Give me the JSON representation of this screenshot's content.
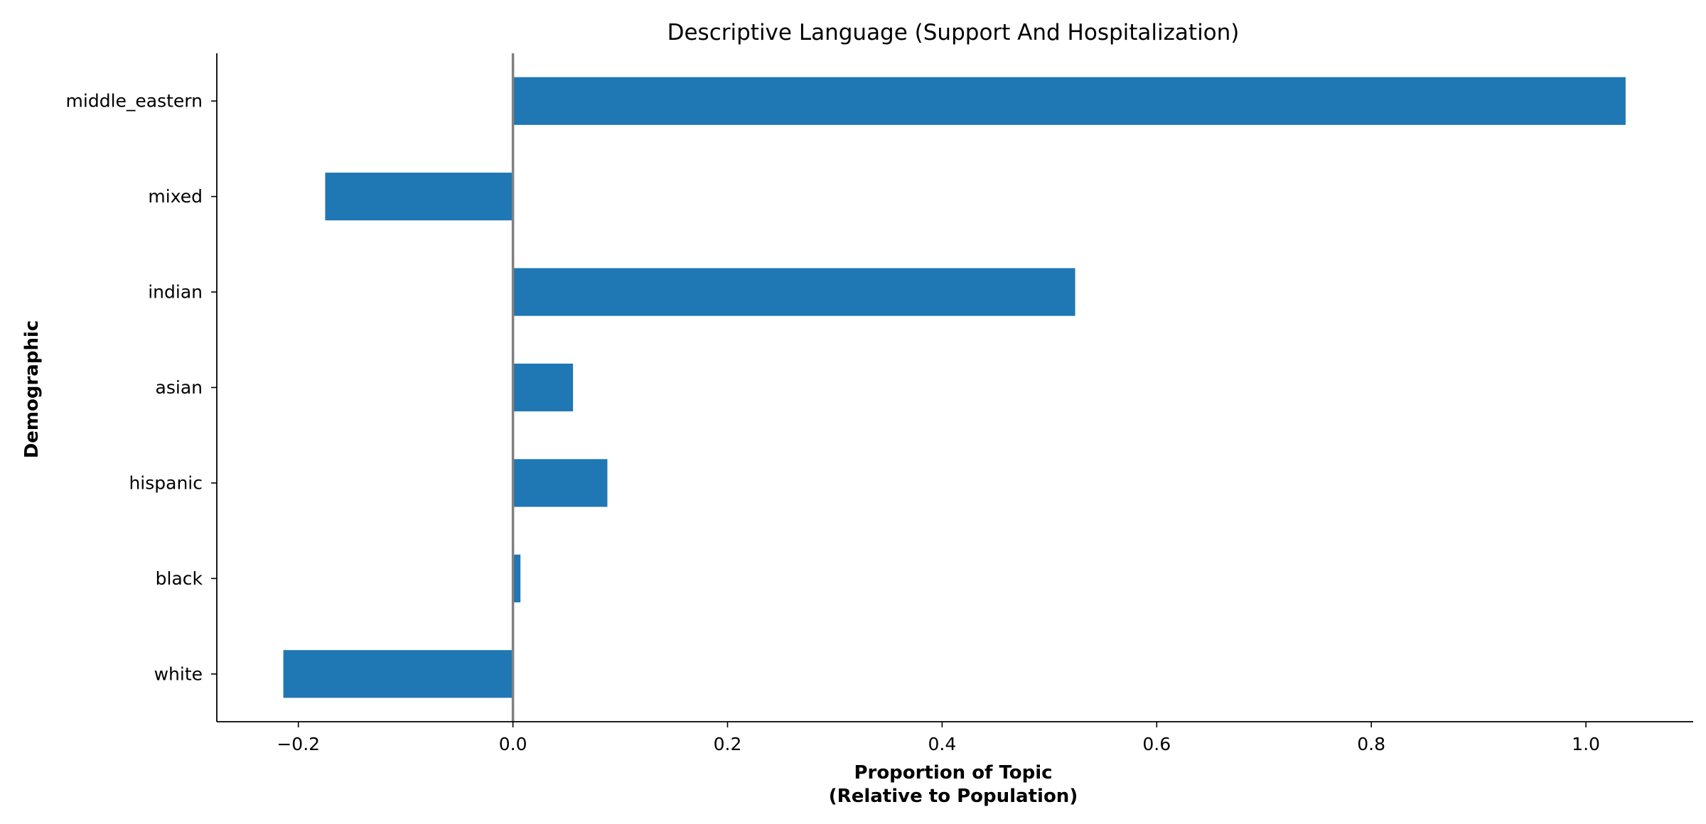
{
  "chart_data": {
    "type": "bar",
    "orientation": "horizontal",
    "title": "Descriptive Language (Support And Hospitalization)",
    "xlabel_lines": [
      "Proportion of Topic",
      "(Relative to Population)"
    ],
    "ylabel": "Demographic",
    "categories": [
      "middle_eastern",
      "mixed",
      "indian",
      "asian",
      "hispanic",
      "black",
      "white"
    ],
    "values": [
      1.037,
      -0.175,
      0.524,
      0.056,
      0.088,
      0.007,
      -0.214
    ],
    "xlim": [
      -0.276,
      1.1
    ],
    "xticks": [
      -0.2,
      0.0,
      0.2,
      0.4,
      0.6,
      0.8,
      1.0
    ],
    "xtick_labels": [
      "−0.2",
      "0.0",
      "0.2",
      "0.4",
      "0.6",
      "0.8",
      "1.0"
    ],
    "bar_color": "#1f77b4",
    "zero_line_color": "#808080",
    "grid": false,
    "legend": "none"
  }
}
